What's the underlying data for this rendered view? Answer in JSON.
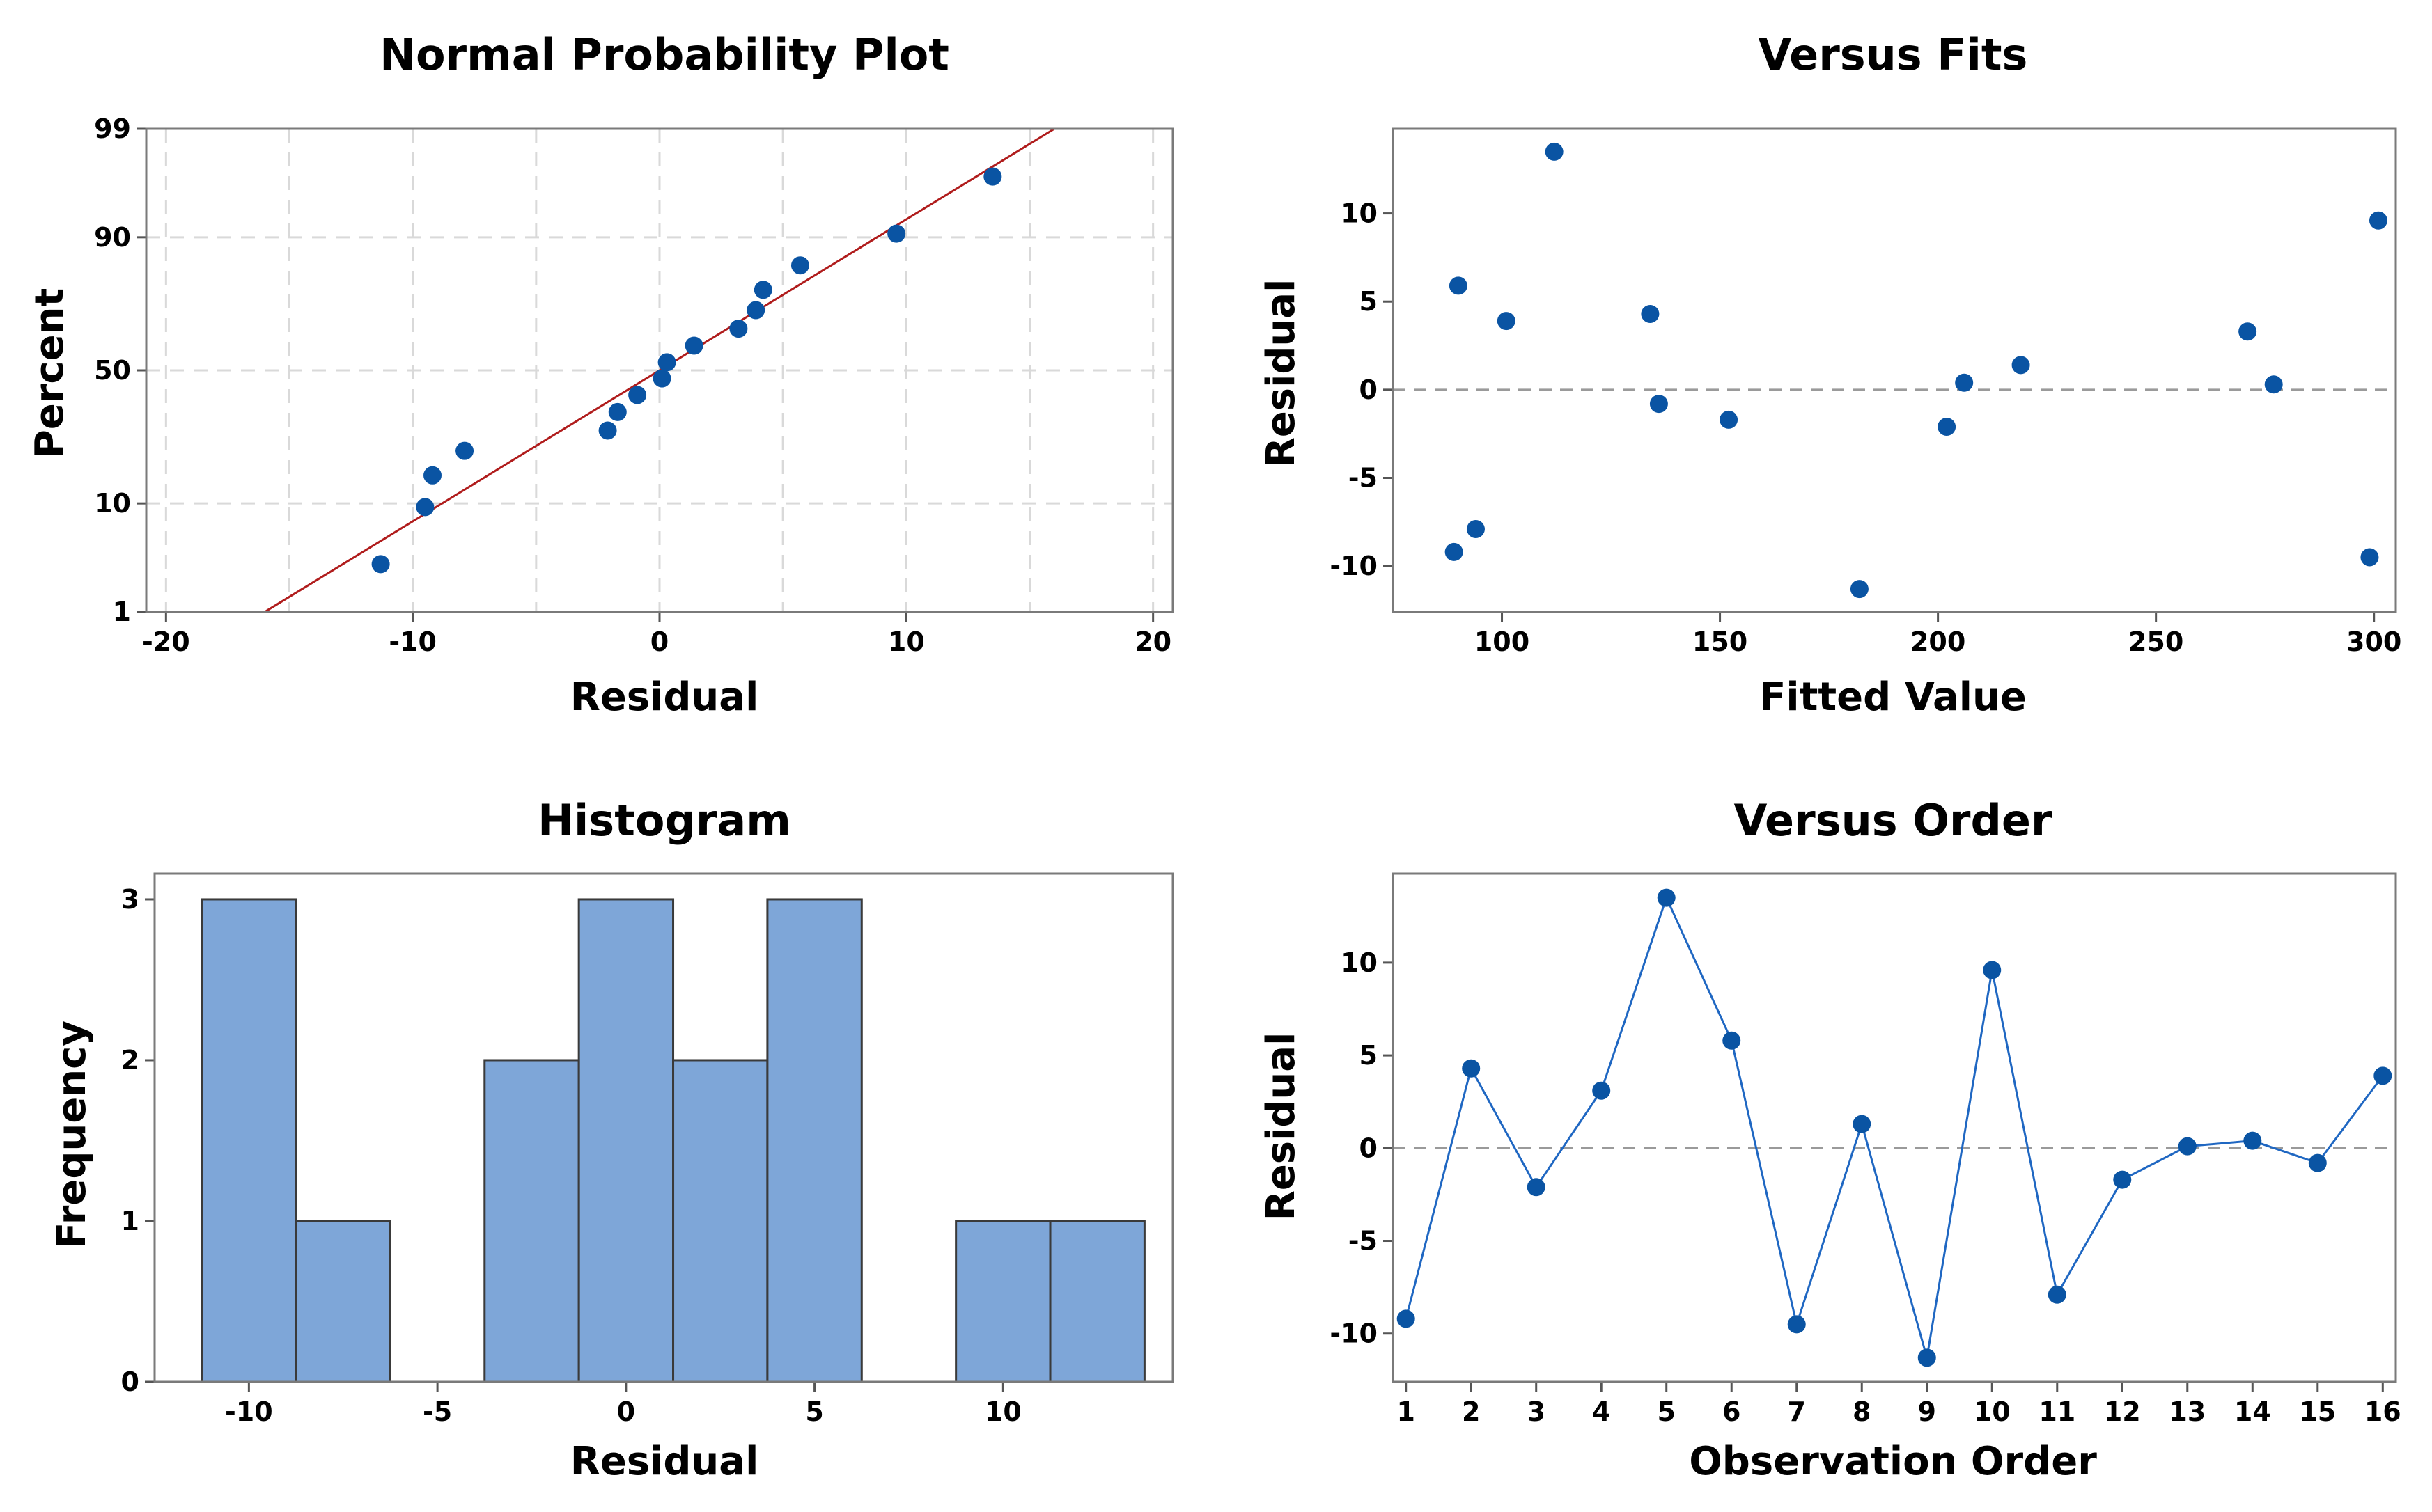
{
  "figure": {
    "colors": {
      "point": "#0a54a3",
      "bar": "#7ea6d8",
      "fit_line": "#b01c1c",
      "order_line": "#1f67c2"
    }
  },
  "chart_data": [
    {
      "id": "npp",
      "type": "scatter",
      "title": "Normal Probability Plot",
      "xlabel": "Residual",
      "ylabel": "Percent",
      "xlim": [
        -20,
        20
      ],
      "xticks": [
        "-20",
        "-10",
        "0",
        "10",
        "20"
      ],
      "yticks": [
        "1",
        "10",
        "50",
        "90",
        "99"
      ],
      "y_scale": "normal probability",
      "points": [
        {
          "x": -11.3,
          "y": 3.1
        },
        {
          "x": -9.5,
          "y": 9.4
        },
        {
          "x": -9.2,
          "y": 15.6
        },
        {
          "x": -7.9,
          "y": 21.9
        },
        {
          "x": -2.1,
          "y": 28.1
        },
        {
          "x": -1.7,
          "y": 34.4
        },
        {
          "x": -0.9,
          "y": 40.6
        },
        {
          "x": 0.1,
          "y": 46.9
        },
        {
          "x": 0.3,
          "y": 53.1
        },
        {
          "x": 1.4,
          "y": 59.4
        },
        {
          "x": 3.2,
          "y": 65.6
        },
        {
          "x": 3.9,
          "y": 71.9
        },
        {
          "x": 4.2,
          "y": 78.1
        },
        {
          "x": 5.7,
          "y": 84.4
        },
        {
          "x": 9.6,
          "y": 90.6
        },
        {
          "x": 13.5,
          "y": 96.9
        }
      ],
      "fit_line": {
        "x": [
          -16,
          16
        ],
        "y": [
          1,
          99
        ]
      }
    },
    {
      "id": "vfits",
      "type": "scatter",
      "title": "Versus Fits",
      "xlabel": "Fitted Value",
      "ylabel": "Residual",
      "xlim": [
        75,
        305
      ],
      "ylim": [
        -12.6,
        14.8
      ],
      "xticks": [
        "100",
        "150",
        "200",
        "250",
        "300"
      ],
      "yticks": [
        "-10",
        "-5",
        "0",
        "5",
        "10"
      ],
      "reference_line": 0,
      "points": [
        {
          "x": 89,
          "y": -9.2
        },
        {
          "x": 90,
          "y": 5.9
        },
        {
          "x": 94,
          "y": -7.9
        },
        {
          "x": 101,
          "y": 3.9
        },
        {
          "x": 112,
          "y": 13.5
        },
        {
          "x": 134,
          "y": 4.3
        },
        {
          "x": 136,
          "y": -0.8
        },
        {
          "x": 152,
          "y": -1.7
        },
        {
          "x": 182,
          "y": -11.3
        },
        {
          "x": 202,
          "y": -2.1
        },
        {
          "x": 206,
          "y": 0.4
        },
        {
          "x": 219,
          "y": 1.4
        },
        {
          "x": 271,
          "y": 3.3
        },
        {
          "x": 277,
          "y": 0.3
        },
        {
          "x": 299,
          "y": -9.5
        },
        {
          "x": 301,
          "y": 9.6
        }
      ]
    },
    {
      "id": "hist",
      "type": "bar",
      "title": "Histogram",
      "xlabel": "Residual",
      "ylabel": "Frequency",
      "xlim": [
        -12.5,
        14.5
      ],
      "ylim": [
        0,
        3.16
      ],
      "xticks": [
        "-10",
        "-5",
        "0",
        "5",
        "10"
      ],
      "yticks": [
        "0",
        "1",
        "2",
        "3"
      ],
      "bin_edges": [
        -11.25,
        -8.75,
        -6.25,
        -3.75,
        -1.25,
        1.25,
        3.75,
        6.25,
        8.75,
        11.25,
        13.75
      ],
      "values": [
        3,
        1,
        0,
        2,
        3,
        2,
        3,
        0,
        1,
        1
      ]
    },
    {
      "id": "vorder",
      "type": "line",
      "title": "Versus Order",
      "xlabel": "Observation Order",
      "ylabel": "Residual",
      "xlim": [
        0.8,
        16.2
      ],
      "ylim": [
        -12.6,
        14.8
      ],
      "xticks": [
        "1",
        "2",
        "3",
        "4",
        "5",
        "6",
        "7",
        "8",
        "9",
        "10",
        "11",
        "12",
        "13",
        "14",
        "15",
        "16"
      ],
      "yticks": [
        "-10",
        "-5",
        "0",
        "5",
        "10"
      ],
      "reference_line": 0,
      "x": [
        1,
        2,
        3,
        4,
        5,
        6,
        7,
        8,
        9,
        10,
        11,
        12,
        13,
        14,
        15,
        16
      ],
      "values": [
        -9.2,
        4.3,
        -2.1,
        3.1,
        13.5,
        5.8,
        -9.5,
        1.3,
        -11.3,
        9.6,
        -7.9,
        -1.7,
        0.1,
        0.4,
        -0.8,
        3.9
      ]
    }
  ]
}
